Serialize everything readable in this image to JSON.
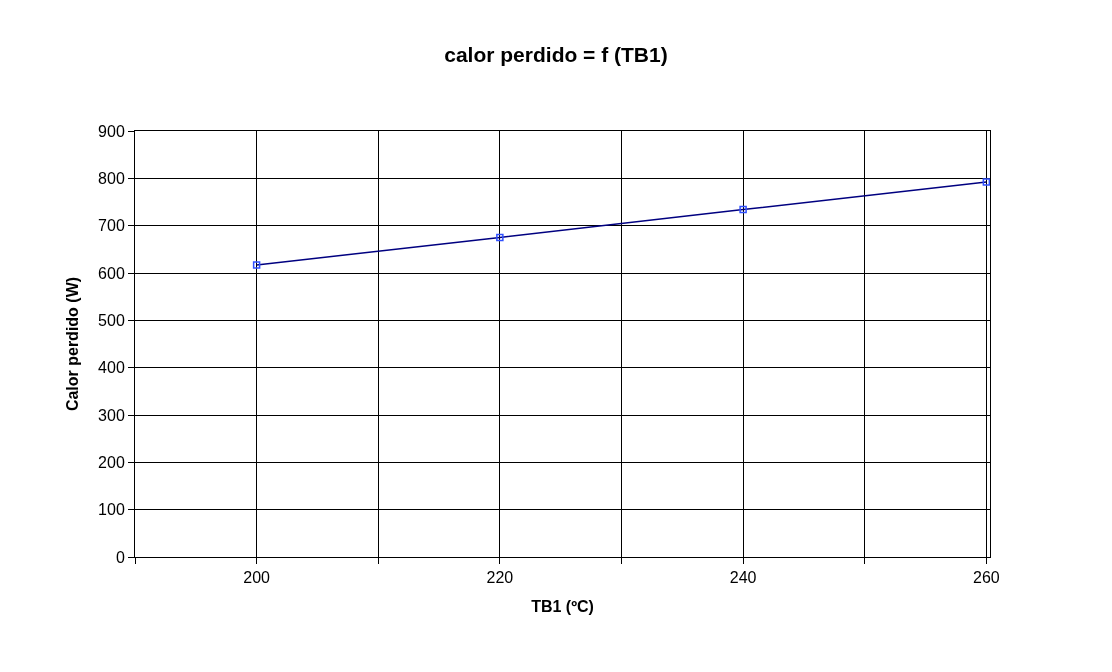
{
  "chart_data": {
    "type": "line",
    "title": "calor perdido = f (TB1)",
    "xlabel": "TB1 (ºC)",
    "ylabel": "Calor perdido (W)",
    "x": [
      200,
      220,
      240,
      260
    ],
    "series": [
      {
        "color": "#000080",
        "values": [
          617,
          675,
          734,
          792
        ]
      }
    ],
    "xlim": [
      190,
      260.3
    ],
    "xticks": [
      {
        "value": 190,
        "label": null
      },
      {
        "value": 200,
        "label": "200"
      },
      {
        "value": 210,
        "label": null
      },
      {
        "value": 220,
        "label": "220"
      },
      {
        "value": 230,
        "label": null
      },
      {
        "value": 240,
        "label": "240"
      },
      {
        "value": 250,
        "label": null
      },
      {
        "value": 260,
        "label": "260"
      }
    ],
    "ylim": [
      0,
      900
    ],
    "yticks": [
      0,
      100,
      200,
      300,
      400,
      500,
      600,
      700,
      800,
      900
    ],
    "grid": true,
    "marker": "square",
    "line_style": "solid"
  }
}
